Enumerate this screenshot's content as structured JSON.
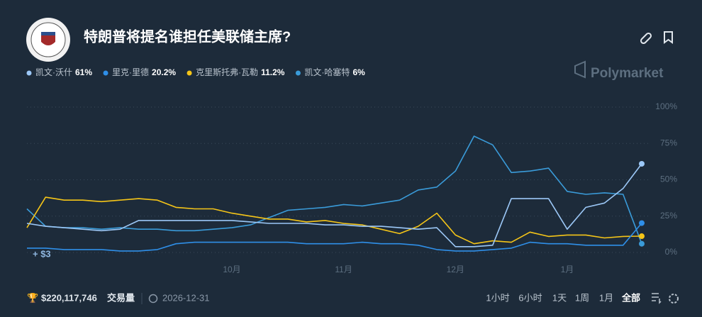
{
  "header": {
    "title": "特朗普将提名谁担任美联储主席?",
    "brand": "Polymarket"
  },
  "chart_data": {
    "type": "line",
    "categories": [
      null,
      null,
      null,
      null,
      null,
      null,
      null,
      null,
      null,
      null,
      null,
      "10月",
      null,
      null,
      null,
      null,
      null,
      "11月",
      null,
      null,
      null,
      null,
      null,
      "12月",
      null,
      null,
      null,
      null,
      null,
      "1月",
      null,
      null,
      null,
      null
    ],
    "series": [
      {
        "name": "凯文·沃什",
        "latest_label": "61%",
        "color": "#9cc8f7",
        "values": [
          20,
          18,
          17,
          16,
          15,
          16,
          22,
          22,
          22,
          22,
          22,
          22,
          21,
          20,
          20,
          20,
          19,
          19,
          18,
          18,
          17,
          16,
          17,
          4,
          4,
          5,
          37,
          37,
          37,
          16,
          31,
          34,
          44,
          61
        ]
      },
      {
        "name": "里克·里德",
        "latest_label": "20.2%",
        "color": "#2f8fe8",
        "values": [
          3,
          3,
          2,
          2,
          2,
          1,
          1,
          2,
          6,
          7,
          7,
          7,
          7,
          7,
          7,
          6,
          6,
          6,
          7,
          6,
          6,
          5,
          2,
          1,
          1,
          2,
          3,
          7,
          6,
          6,
          5,
          5,
          5,
          20.2
        ]
      },
      {
        "name": "克里斯托弗·瓦勒",
        "latest_label": "11.2%",
        "color": "#f5c518",
        "values": [
          17,
          38,
          36,
          36,
          35,
          36,
          37,
          36,
          31,
          30,
          30,
          27,
          25,
          23,
          23,
          21,
          22,
          20,
          19,
          16,
          13,
          18,
          27,
          12,
          6,
          8,
          7,
          14,
          11,
          12,
          12,
          10,
          11,
          11.2
        ]
      },
      {
        "name": "凯文·哈塞特",
        "latest_label": "6%",
        "color": "#3a9bd9",
        "values": [
          30,
          18,
          17,
          17,
          16,
          17,
          16,
          16,
          15,
          15,
          16,
          17,
          19,
          24,
          29,
          30,
          31,
          33,
          32,
          34,
          36,
          43,
          45,
          56,
          80,
          74,
          55,
          56,
          58,
          42,
          40,
          41,
          40,
          6
        ]
      }
    ],
    "ylim": [
      0,
      100
    ],
    "yticks": [
      {
        "value": 0,
        "label": "0%"
      },
      {
        "value": 25,
        "label": "25%"
      },
      {
        "value": 50,
        "label": "50%"
      },
      {
        "value": 75,
        "label": "75%"
      },
      {
        "value": 100,
        "label": "100%"
      }
    ],
    "grid": true,
    "annotation": "+ $3"
  },
  "footer": {
    "volume": "$220,117,746",
    "volume_label": "交易量",
    "end_date": "2026-12-31",
    "ranges": [
      "1小时",
      "6小时",
      "1天",
      "1周",
      "1月",
      "全部"
    ]
  }
}
